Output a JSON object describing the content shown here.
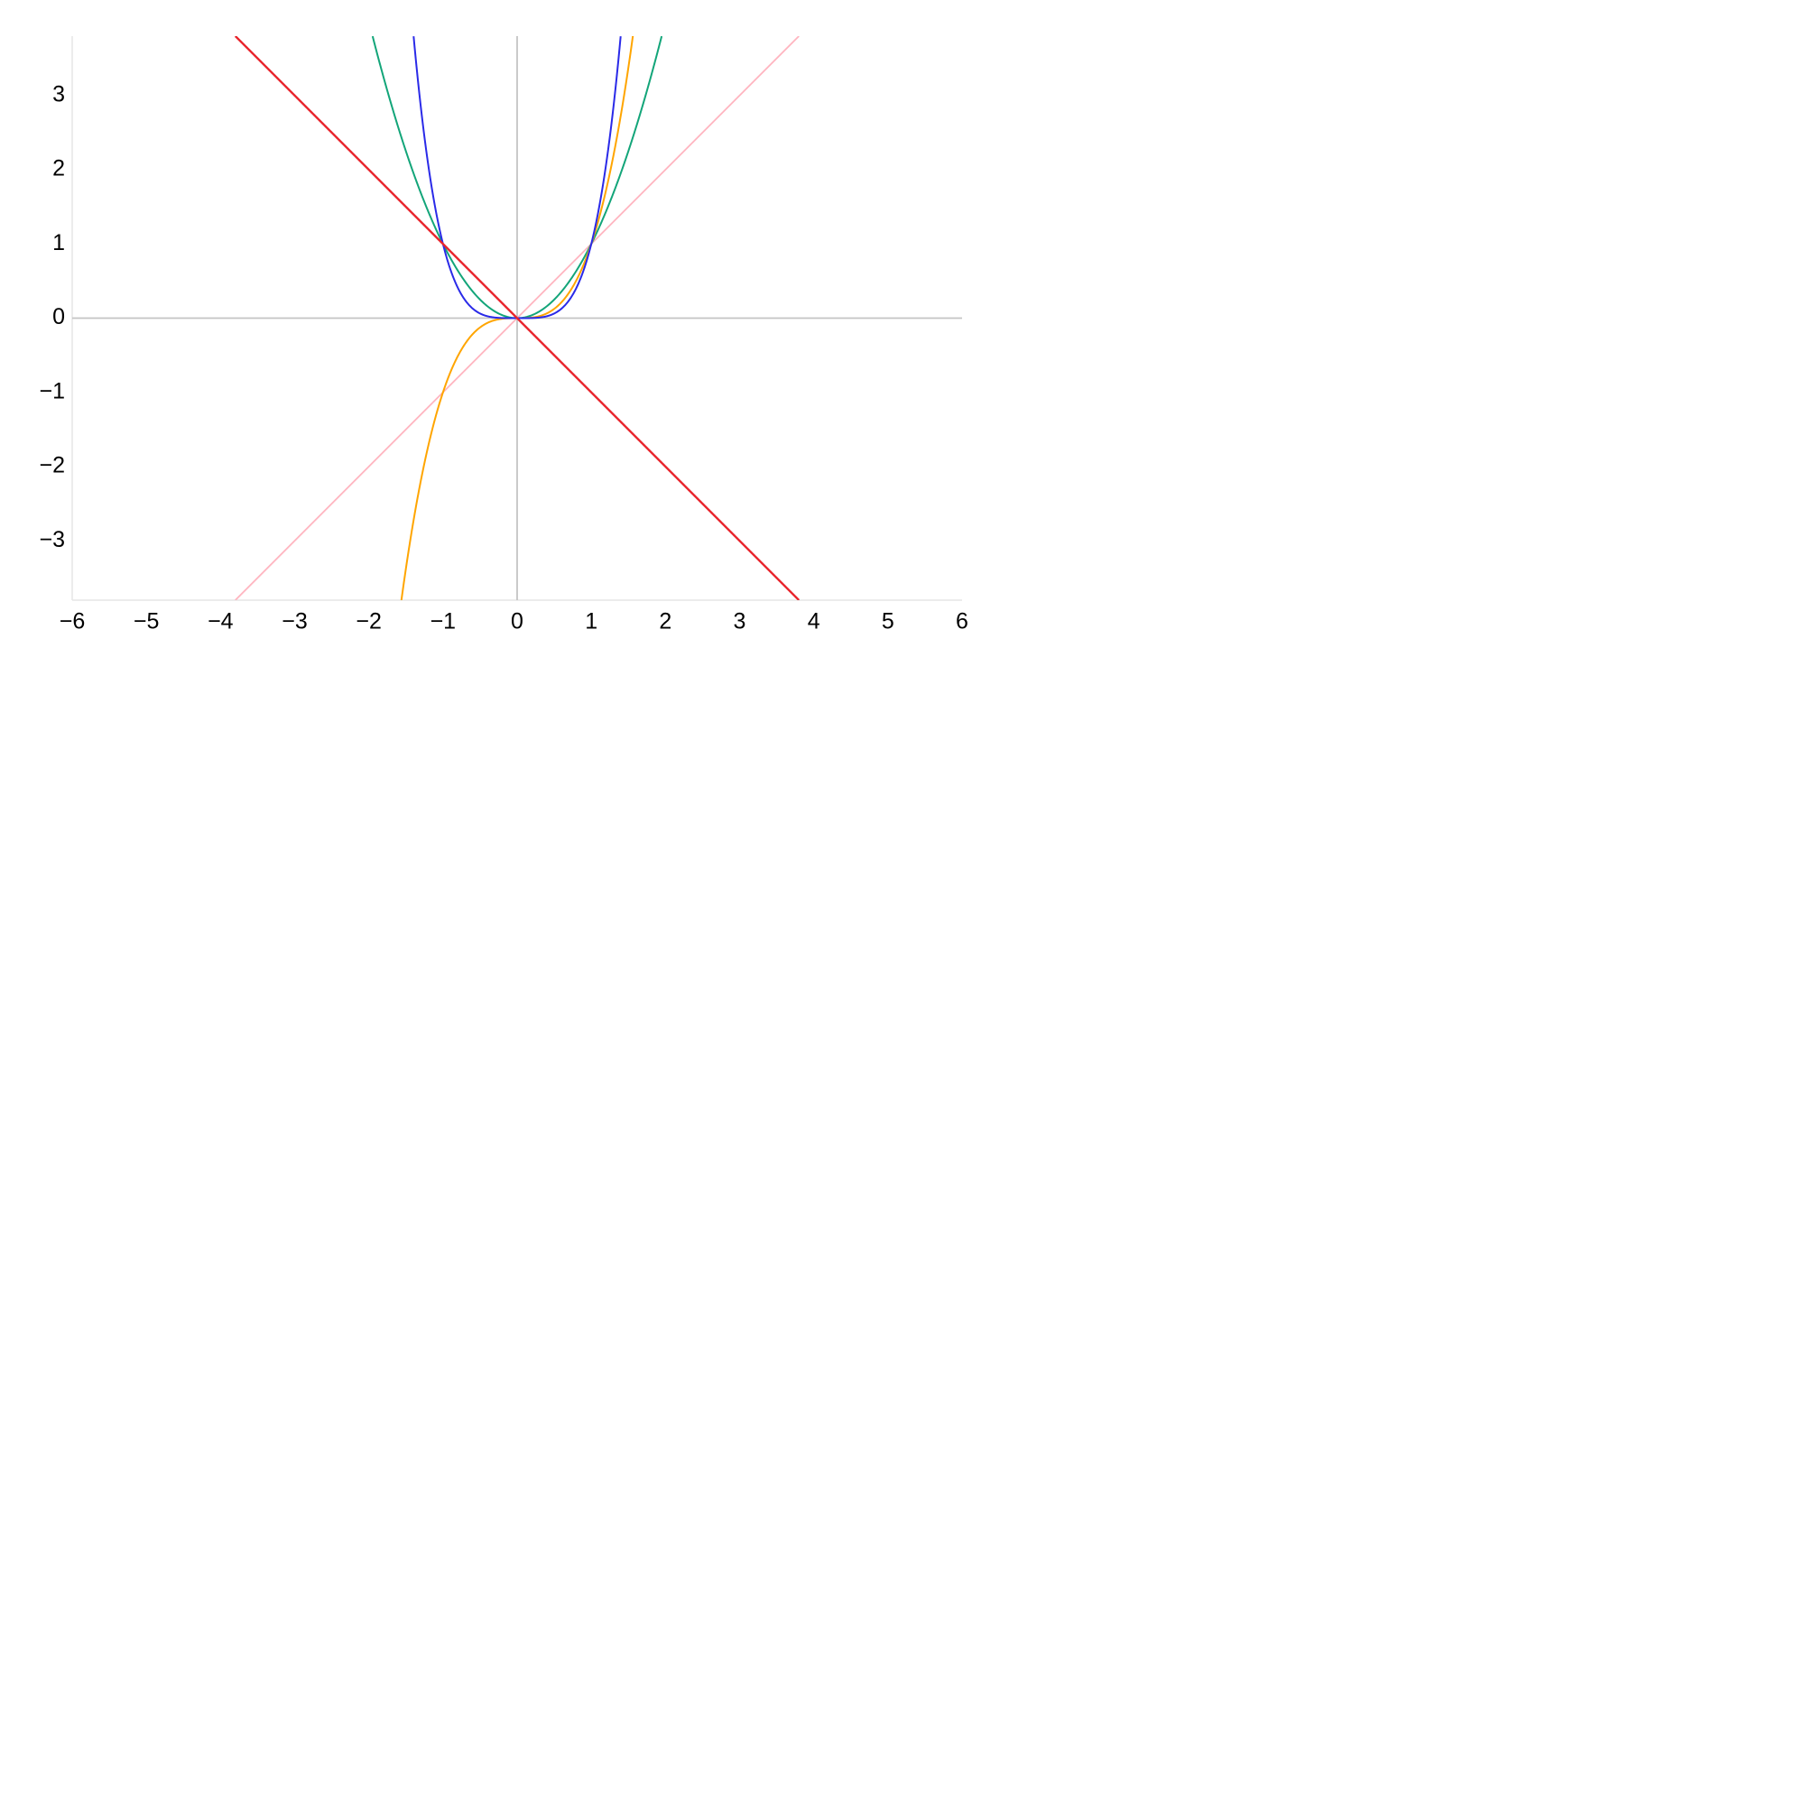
{
  "chart_data": {
    "type": "line",
    "title": "",
    "xlabel": "",
    "ylabel": "",
    "xlim": [
      -6,
      6
    ],
    "ylim": [
      -3.8,
      3.8
    ],
    "grid": false,
    "legend": "none",
    "x_ticks": [
      -6,
      -5,
      -4,
      -3,
      -2,
      -1,
      0,
      1,
      2,
      3,
      4,
      5,
      6
    ],
    "y_ticks": [
      -3,
      -2,
      -1,
      0,
      1,
      2,
      3
    ],
    "x_tick_labels": [
      "−6",
      "−5",
      "−4",
      "−3",
      "−2",
      "−1",
      "0",
      "1",
      "2",
      "3",
      "4",
      "5",
      "6"
    ],
    "y_tick_labels": [
      "−3",
      "−2",
      "−1",
      "0",
      "1",
      "2",
      "3"
    ],
    "series": [
      {
        "id": "linear",
        "color": "#ffb6c1",
        "x": [
          -3.8,
          3.8
        ],
        "y": [
          -3.8,
          3.8
        ]
      },
      {
        "id": "negative-linear",
        "color": "#e8232b",
        "x": [
          -3.8,
          3.8
        ],
        "y": [
          3.8,
          -3.8
        ]
      },
      {
        "id": "quadratic",
        "color": "#13a579",
        "x": [
          -1.949,
          -1.5,
          -1,
          -0.5,
          0,
          0.5,
          1,
          1.5,
          1.949
        ],
        "y": [
          3.8,
          2.25,
          1,
          0.25,
          0,
          0.25,
          1,
          2.25,
          3.8
        ]
      },
      {
        "id": "cubic",
        "color": "#ffa500",
        "x": [
          -1.561,
          -1.25,
          -1,
          -0.5,
          0,
          0.5,
          1,
          1.25,
          1.561
        ],
        "y": [
          -3.8,
          -1.953,
          -1,
          -0.125,
          0,
          0.125,
          1,
          1.953,
          3.8
        ]
      },
      {
        "id": "quartic",
        "color": "#2a2ae8",
        "x": [
          -1.396,
          -1.2,
          -1,
          -0.5,
          0,
          0.5,
          1,
          1.2,
          1.396
        ],
        "y": [
          3.8,
          2.074,
          1,
          0.0625,
          0,
          0.0625,
          1,
          2.074,
          3.8
        ]
      }
    ]
  }
}
